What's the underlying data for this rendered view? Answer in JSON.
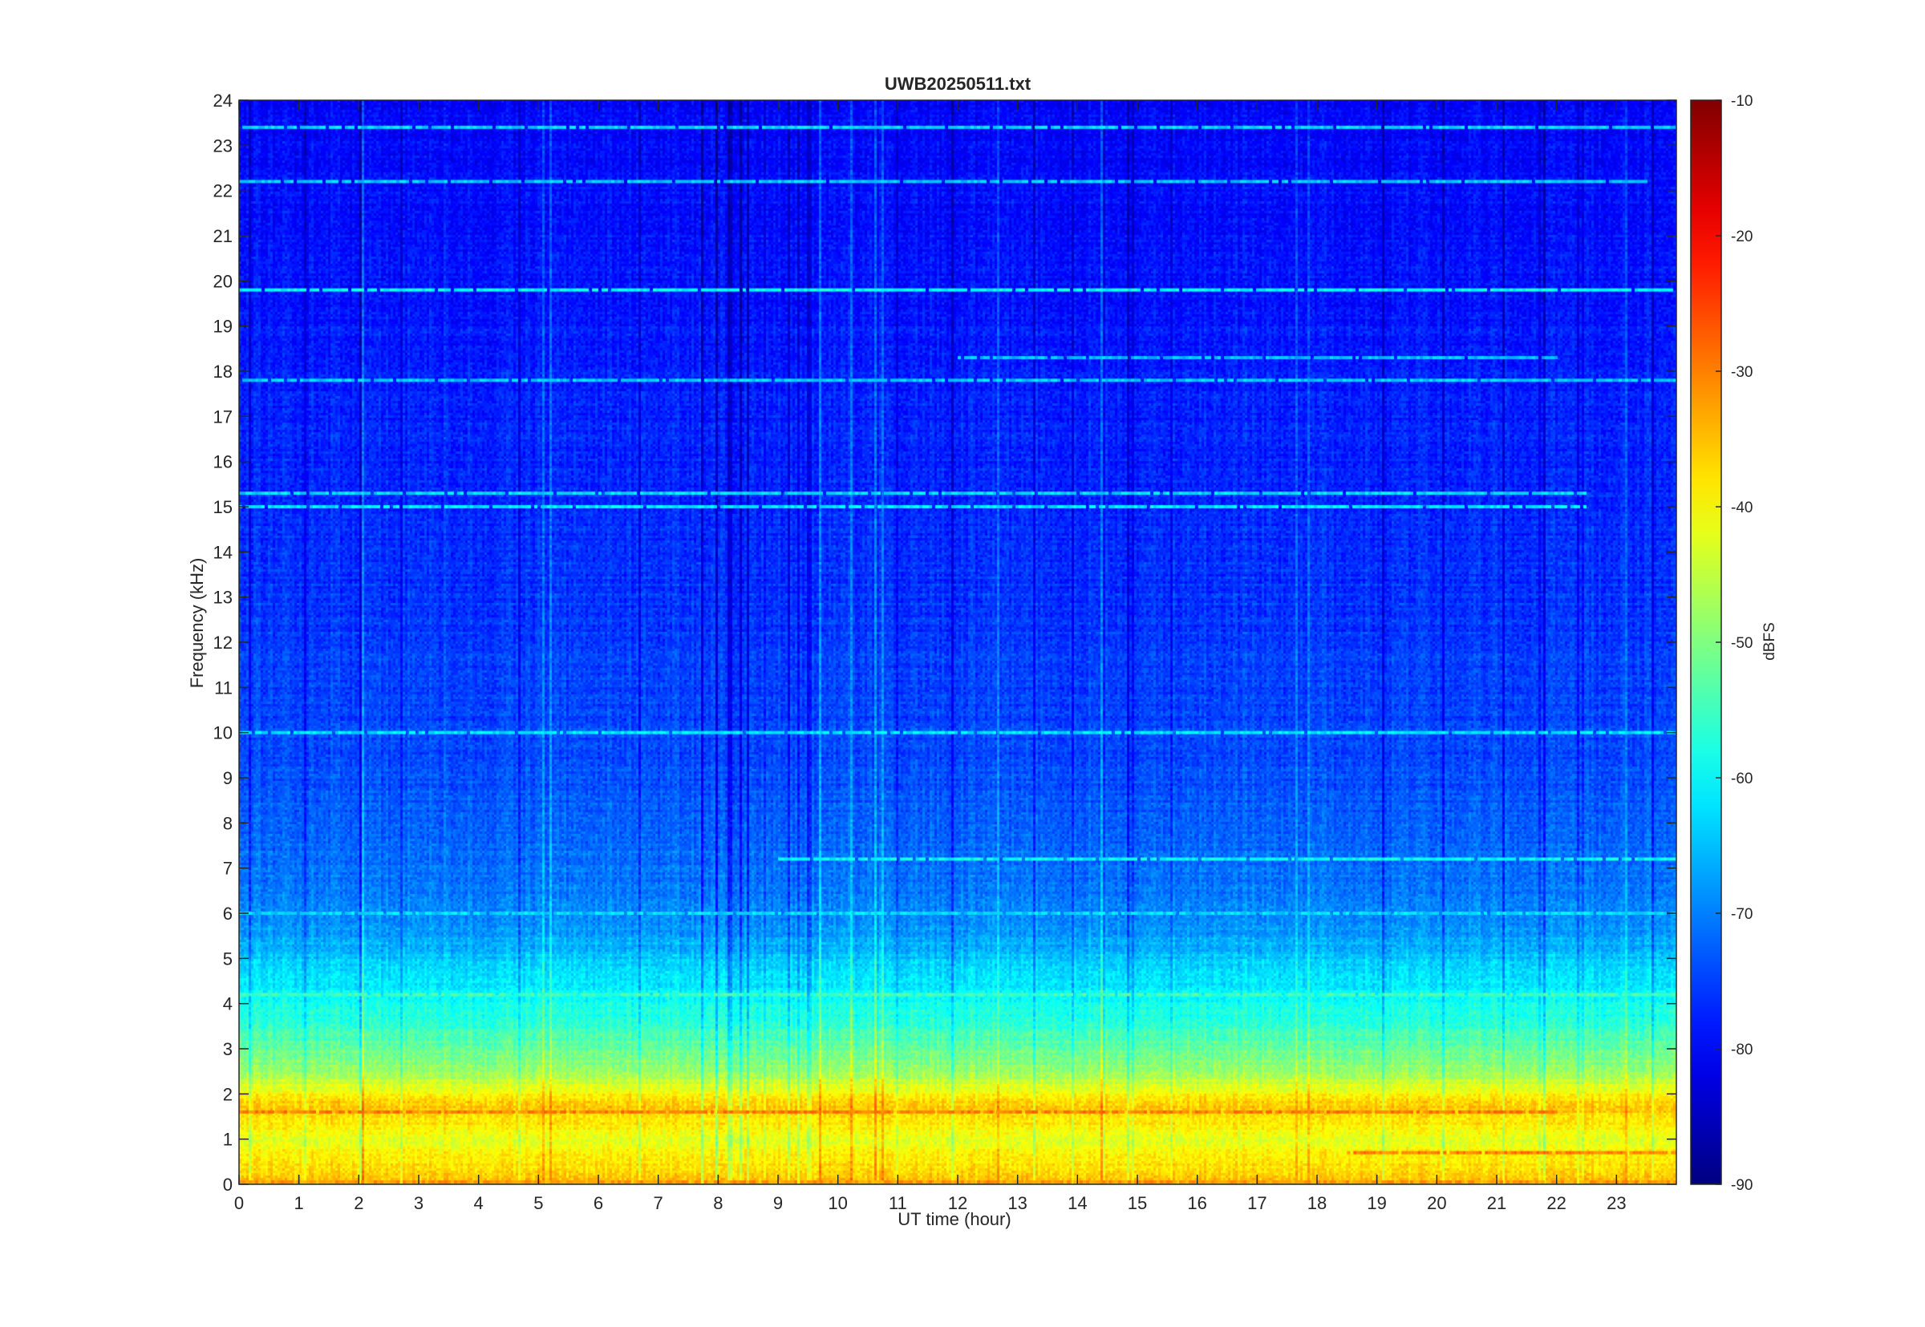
{
  "chart_data": {
    "type": "heatmap",
    "title": "UWB20250511.txt",
    "xlabel": "UT time (hour)",
    "ylabel": "Frequency (kHz)",
    "xlim": [
      0,
      24
    ],
    "ylim": [
      0,
      24
    ],
    "x_ticks": [
      "0",
      "1",
      "2",
      "3",
      "4",
      "5",
      "6",
      "7",
      "8",
      "9",
      "10",
      "11",
      "12",
      "13",
      "14",
      "15",
      "16",
      "17",
      "18",
      "19",
      "20",
      "21",
      "22",
      "23"
    ],
    "y_ticks": [
      "0",
      "1",
      "2",
      "3",
      "4",
      "5",
      "6",
      "7",
      "8",
      "9",
      "10",
      "11",
      "12",
      "13",
      "14",
      "15",
      "16",
      "17",
      "18",
      "19",
      "20",
      "21",
      "22",
      "23",
      "24"
    ],
    "colorbar": {
      "label": "dBFS",
      "colormap": "jet",
      "range": [
        -90,
        -10
      ],
      "ticks": [
        "-10",
        "-20",
        "-30",
        "-40",
        "-50",
        "-60",
        "-70",
        "-80",
        "-90"
      ]
    },
    "background_level_dbfs_by_frequency_khz": [
      {
        "f": 0.1,
        "db": -35
      },
      {
        "f": 1.0,
        "db": -42
      },
      {
        "f": 1.7,
        "db": -35
      },
      {
        "f": 2.5,
        "db": -48
      },
      {
        "f": 3.5,
        "db": -56
      },
      {
        "f": 4.5,
        "db": -62
      },
      {
        "f": 6.0,
        "db": -70
      },
      {
        "f": 9.0,
        "db": -74
      },
      {
        "f": 15.0,
        "db": -77
      },
      {
        "f": 24.0,
        "db": -80
      }
    ],
    "horizontal_lines": [
      {
        "freq_khz": 0.05,
        "db": -32,
        "x_range": [
          0,
          24
        ]
      },
      {
        "freq_khz": 0.7,
        "db": -30,
        "x_range": [
          18.5,
          24
        ]
      },
      {
        "freq_khz": 1.6,
        "db": -30,
        "x_range": [
          0,
          22
        ]
      },
      {
        "freq_khz": 4.2,
        "db": -55,
        "x_range": [
          0,
          24
        ]
      },
      {
        "freq_khz": 6.0,
        "db": -63,
        "x_range": [
          0,
          24
        ]
      },
      {
        "freq_khz": 7.2,
        "db": -60,
        "x_range": [
          9,
          24
        ]
      },
      {
        "freq_khz": 10.0,
        "db": -62,
        "x_range": [
          0,
          24
        ]
      },
      {
        "freq_khz": 15.0,
        "db": -62,
        "x_range": [
          0,
          22.5
        ]
      },
      {
        "freq_khz": 15.3,
        "db": -63,
        "x_range": [
          0,
          22.5
        ]
      },
      {
        "freq_khz": 17.8,
        "db": -64,
        "x_range": [
          0,
          24
        ]
      },
      {
        "freq_khz": 18.3,
        "db": -65,
        "x_range": [
          12,
          22
        ]
      },
      {
        "freq_khz": 19.8,
        "db": -60,
        "x_range": [
          0,
          24
        ]
      },
      {
        "freq_khz": 22.2,
        "db": -64,
        "x_range": [
          0,
          23.5
        ]
      },
      {
        "freq_khz": 23.4,
        "db": -63,
        "x_range": [
          0,
          24
        ]
      }
    ]
  }
}
